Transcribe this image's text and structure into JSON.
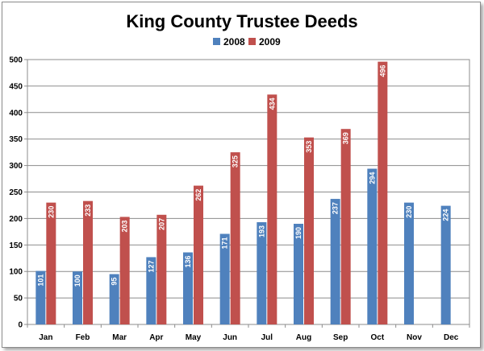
{
  "chart_data": {
    "type": "bar",
    "title": "King County Trustee Deeds",
    "xlabel": "",
    "ylabel": "",
    "ylim": [
      0,
      500
    ],
    "yticks": [
      0,
      50,
      100,
      150,
      200,
      250,
      300,
      350,
      400,
      450,
      500
    ],
    "grid": true,
    "legend_position": "top",
    "categories": [
      "Jan",
      "Feb",
      "Mar",
      "Apr",
      "May",
      "Jun",
      "Jul",
      "Aug",
      "Sep",
      "Oct",
      "Nov",
      "Dec"
    ],
    "series": [
      {
        "name": "2008",
        "color": "#4f81bd",
        "values": [
          101,
          100,
          95,
          127,
          136,
          171,
          193,
          190,
          237,
          294,
          230,
          224
        ],
        "labels": [
          "101",
          "100",
          "95",
          "127",
          "136",
          "171",
          "193",
          "190",
          "237",
          "294",
          "230",
          "224"
        ]
      },
      {
        "name": "2009",
        "color": "#c0504d",
        "values": [
          230,
          233,
          203,
          207,
          262,
          325,
          434,
          353,
          369,
          496,
          null,
          null
        ],
        "labels": [
          "230",
          "233",
          "203",
          "207",
          "262",
          "325",
          "434",
          "353",
          "369",
          "496",
          "",
          ""
        ]
      }
    ]
  }
}
